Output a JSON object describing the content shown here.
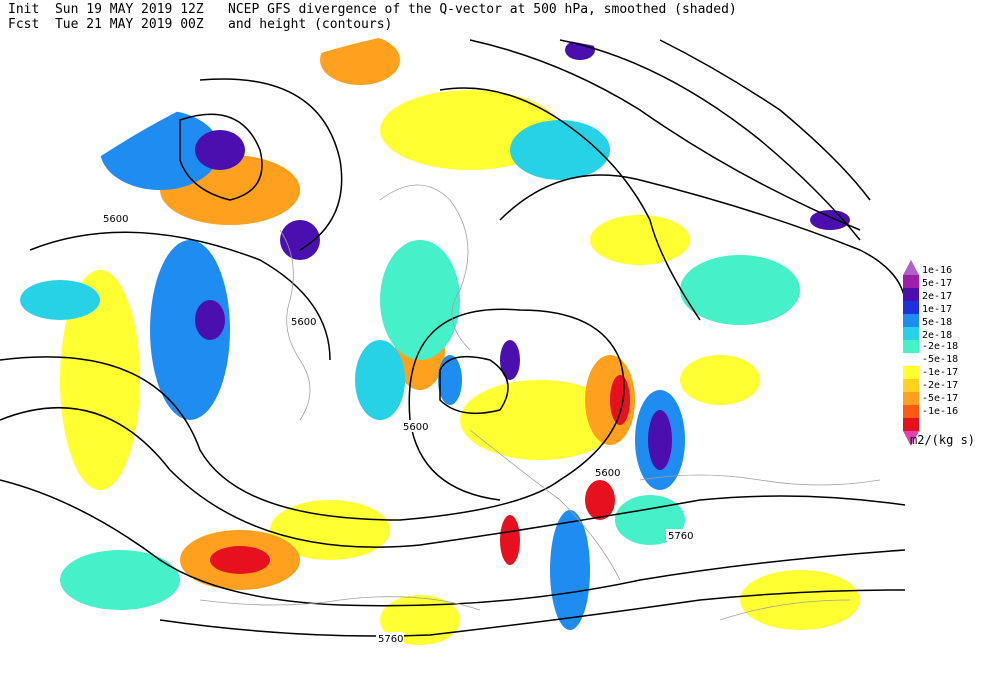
{
  "header": {
    "init_label": "Init",
    "init_time": "Sun 19 MAY 2019 12Z",
    "fcst_label": "Fcst",
    "fcst_time": "Tue 21 MAY 2019 00Z",
    "title_line1": "NCEP GFS divergence of the Q-vector at 500 hPa, smoothed (shaded)",
    "title_line2": "and height (contours)"
  },
  "colorbar": {
    "positive_levels": [
      "1e-16",
      "5e-17",
      "2e-17",
      "1e-17",
      "5e-18",
      "2e-18"
    ],
    "positive_colors": [
      "#9b1fa8",
      "#4b0fb0",
      "#1e30e0",
      "#1e8cf0",
      "#28d2e6",
      "#46f0c8"
    ],
    "negative_levels": [
      "-2e-18",
      "-5e-18",
      "-1e-17",
      "-2e-17",
      "-5e-17",
      "-1e-16"
    ],
    "negative_colors": [
      "#ffff32",
      "#ffd21e",
      "#ffa01e",
      "#ff5a14",
      "#e6101e",
      "#b4006e"
    ],
    "top_arrow_color": "#b060c8",
    "bottom_arrow_color": "#e040b0",
    "units": "m2/(kg s)"
  },
  "contour_labels": [
    {
      "text": "5600"
    },
    {
      "text": "5600"
    },
    {
      "text": "5600"
    },
    {
      "text": "5600"
    },
    {
      "text": "5760"
    },
    {
      "text": "5760"
    }
  ]
}
